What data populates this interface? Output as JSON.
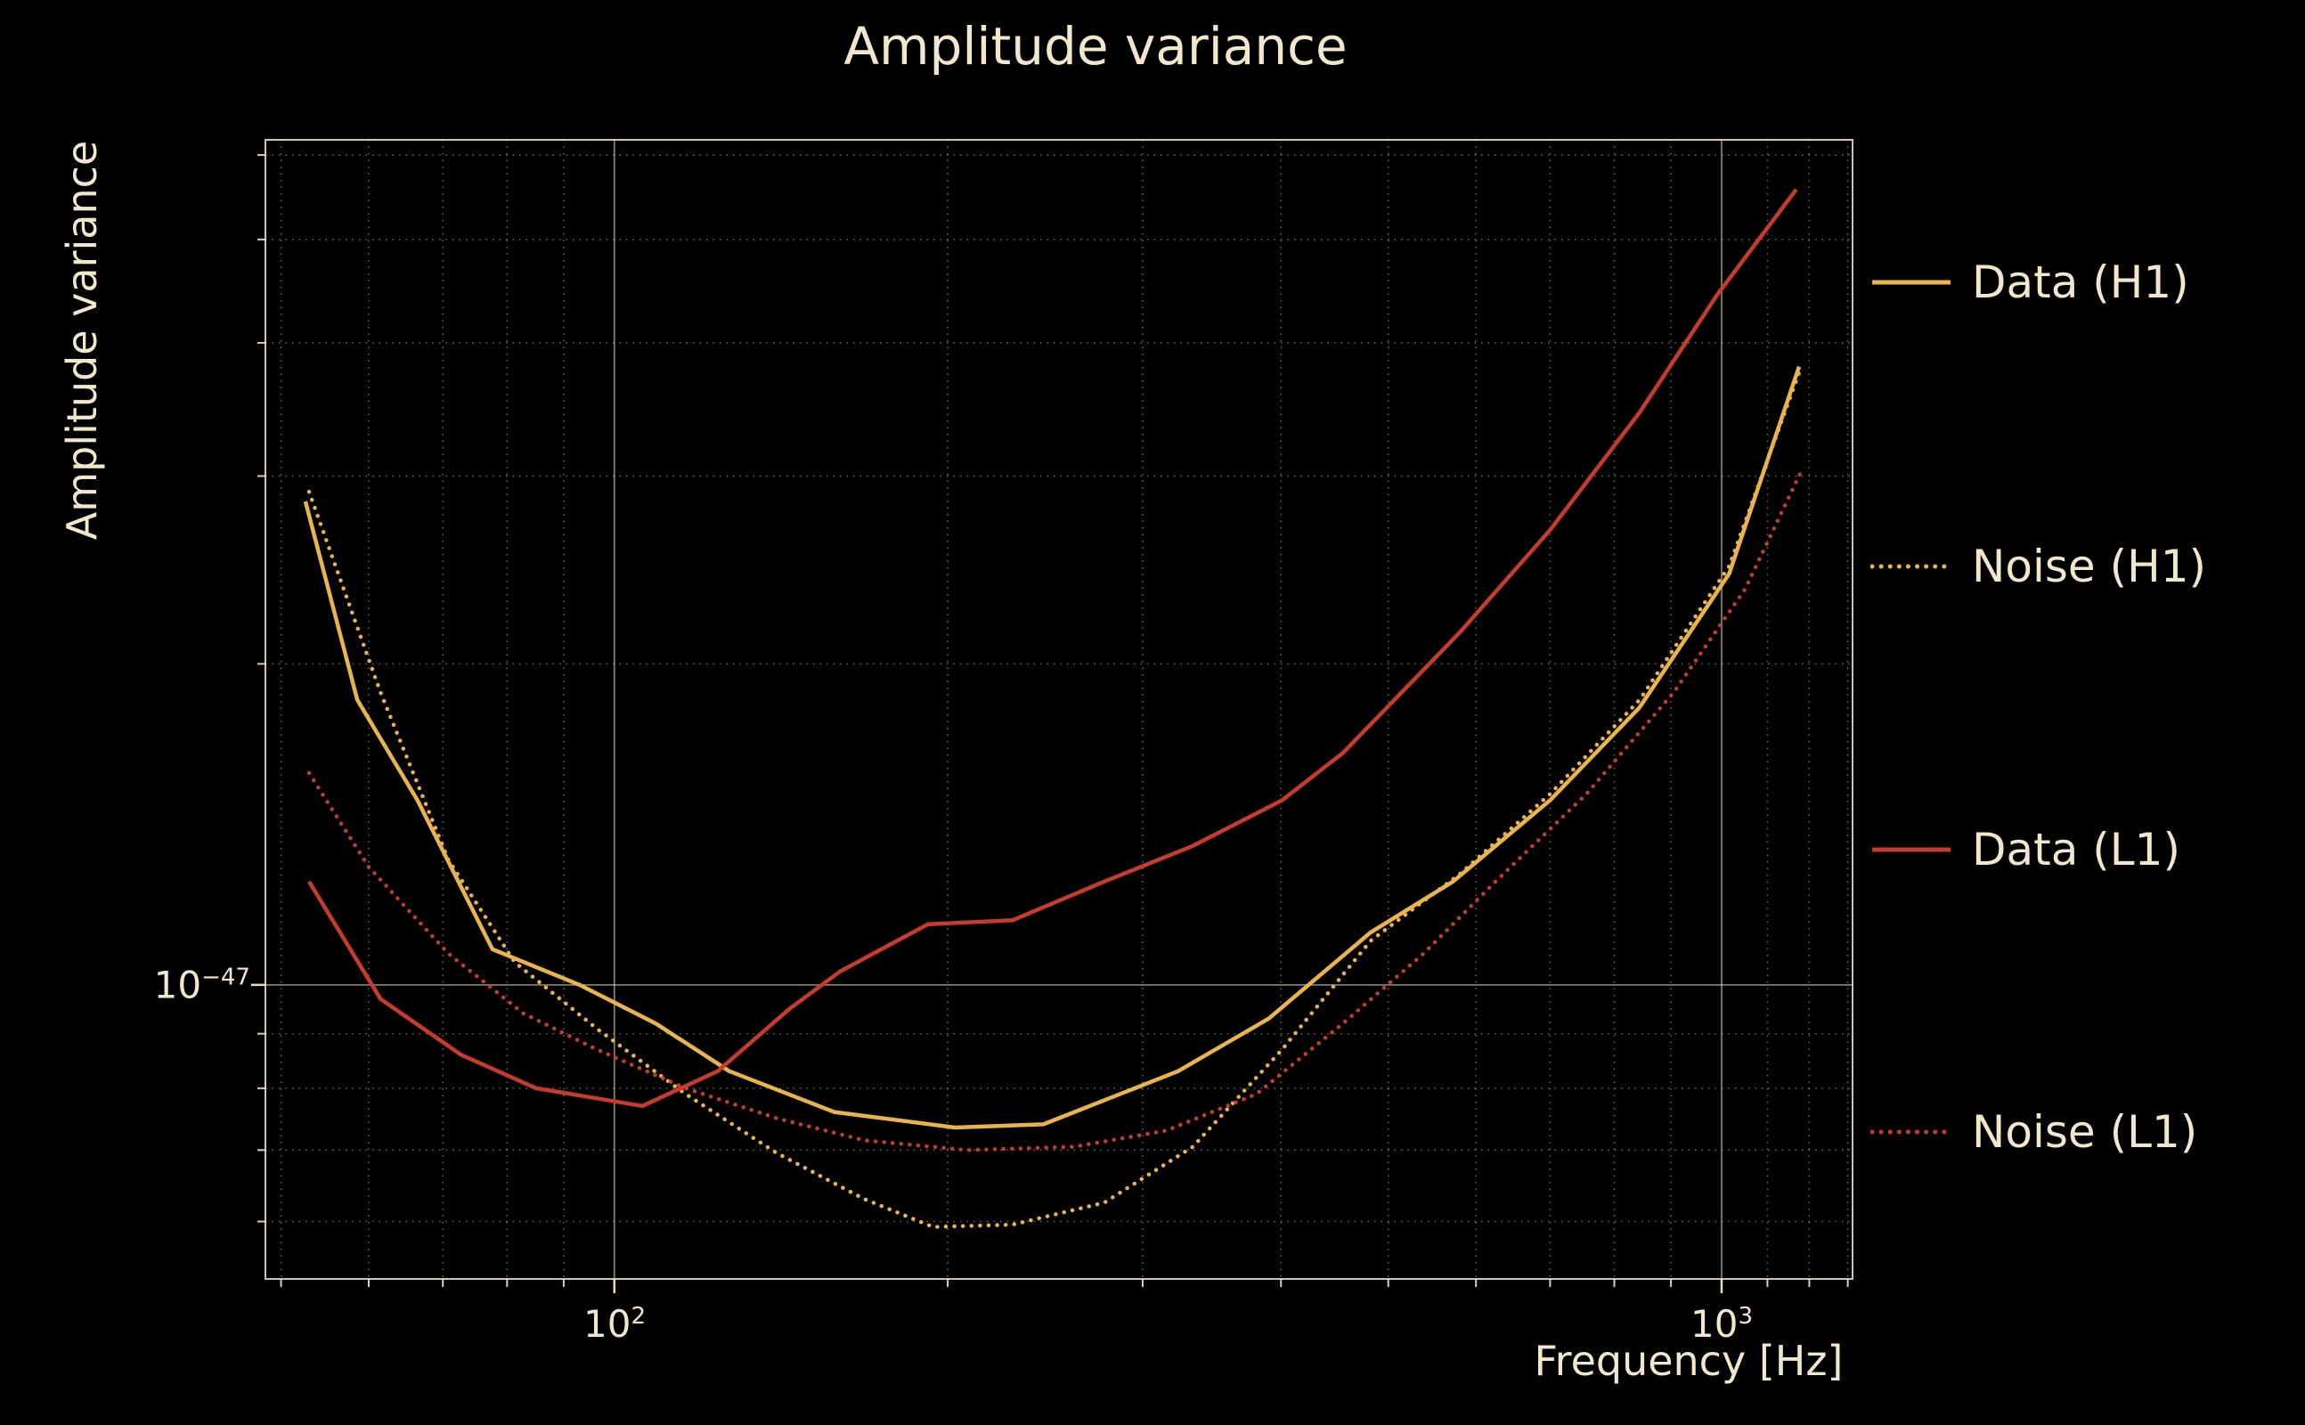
{
  "colors": {
    "background": "#000000",
    "text": "#f1e7cd",
    "grid": "#d8cfae",
    "gold": "#e9b44c",
    "red": "#c73b2d"
  },
  "chart_data": {
    "type": "line",
    "title": "Amplitude variance",
    "xlabel": "Frequency [Hz]",
    "ylabel": "Amplitude variance",
    "x_scale": "log",
    "y_scale": "log",
    "xlim": [
      48.4,
      1313
    ],
    "ylim": [
      5.3e-48,
      6.2e-47
    ],
    "grid": true,
    "legend_position": "right-outside",
    "x_tick_labels": [
      {
        "base": "10",
        "exp": "2"
      },
      {
        "base": "10",
        "exp": "3"
      }
    ],
    "y_tick_labels": [
      {
        "base": "10",
        "exp": "−47"
      }
    ],
    "x_major_ticks": [
      100,
      1000
    ],
    "x_minor_ticks": [
      50,
      60,
      70,
      80,
      90,
      200,
      300,
      400,
      500,
      600,
      700,
      800,
      900,
      1100,
      1200,
      1300
    ],
    "y_major_ticks": [
      1e-47
    ],
    "y_minor_ticks": [
      6e-48,
      7e-48,
      8e-48,
      9e-48,
      2e-47,
      3e-47,
      4e-47,
      5e-47,
      6e-47
    ],
    "series": [
      {
        "name": "Data (H1)",
        "color": "#e9b44c",
        "line_style": "solid",
        "points": [
          [
            52.6,
            2.84e-47
          ],
          [
            58.6,
            1.85e-47
          ],
          [
            66.4,
            1.49e-47
          ],
          [
            77.6,
            1.08e-47
          ],
          [
            93,
            1e-47
          ],
          [
            109,
            9.2e-48
          ],
          [
            127,
            8.3e-48
          ],
          [
            158,
            7.6e-48
          ],
          [
            203,
            7.35e-48
          ],
          [
            244,
            7.4e-48
          ],
          [
            323,
            8.3e-48
          ],
          [
            390,
            9.3e-48
          ],
          [
            482,
            1.12e-47
          ],
          [
            572,
            1.25e-47
          ],
          [
            700,
            1.49e-47
          ],
          [
            843,
            1.82e-47
          ],
          [
            1016,
            2.43e-47
          ],
          [
            1175,
            3.8e-47
          ]
        ]
      },
      {
        "name": "Noise (H1)",
        "color": "#e9b44c",
        "line_style": "dotted",
        "points": [
          [
            53,
            2.9e-47
          ],
          [
            61.5,
            1.88e-47
          ],
          [
            70.8,
            1.31e-47
          ],
          [
            81.3,
            1.05e-47
          ],
          [
            96.4,
            9.1e-48
          ],
          [
            116,
            7.9e-48
          ],
          [
            140,
            6.96e-48
          ],
          [
            168,
            6.3e-48
          ],
          [
            194,
            5.93e-48
          ],
          [
            229,
            5.96e-48
          ],
          [
            277,
            6.25e-48
          ],
          [
            333,
            7.05e-48
          ],
          [
            401,
            8.7e-48
          ],
          [
            482,
            1.1e-47
          ],
          [
            580,
            1.27e-47
          ],
          [
            700,
            1.51e-47
          ],
          [
            843,
            1.85e-47
          ],
          [
            1016,
            2.47e-47
          ],
          [
            1175,
            3.75e-47
          ]
        ]
      },
      {
        "name": "Data (L1)",
        "color": "#c73b2d",
        "line_style": "solid",
        "points": [
          [
            53,
            1.25e-47
          ],
          [
            61.5,
            9.7e-48
          ],
          [
            72.7,
            8.6e-48
          ],
          [
            85,
            8e-48
          ],
          [
            106,
            7.7e-48
          ],
          [
            124,
            8.3e-48
          ],
          [
            144,
            9.5e-48
          ],
          [
            160,
            1.03e-47
          ],
          [
            192,
            1.14e-47
          ],
          [
            229,
            1.15e-47
          ],
          [
            277,
            1.25e-47
          ],
          [
            333,
            1.35e-47
          ],
          [
            401,
            1.49e-47
          ],
          [
            455,
            1.65e-47
          ],
          [
            580,
            2.14e-47
          ],
          [
            700,
            2.67e-47
          ],
          [
            843,
            3.44e-47
          ],
          [
            990,
            4.43e-47
          ],
          [
            1168,
            5.57e-47
          ]
        ]
      },
      {
        "name": "Noise (L1)",
        "color": "#c73b2d",
        "line_style": "dotted",
        "points": [
          [
            53,
            1.58e-47
          ],
          [
            60,
            1.29e-47
          ],
          [
            70.8,
            1.07e-47
          ],
          [
            82.8,
            9.4e-48
          ],
          [
            96.4,
            8.7e-48
          ],
          [
            116,
            8e-48
          ],
          [
            140,
            7.5e-48
          ],
          [
            168,
            7.15e-48
          ],
          [
            208,
            7e-48
          ],
          [
            260,
            7.05e-48
          ],
          [
            315,
            7.3e-48
          ],
          [
            380,
            7.9e-48
          ],
          [
            455,
            9.2e-48
          ],
          [
            538,
            1.07e-47
          ],
          [
            625,
            1.25e-47
          ],
          [
            755,
            1.51e-47
          ],
          [
            905,
            1.88e-47
          ],
          [
            1050,
            2.35e-47
          ],
          [
            1180,
            3.03e-47
          ]
        ]
      }
    ]
  }
}
